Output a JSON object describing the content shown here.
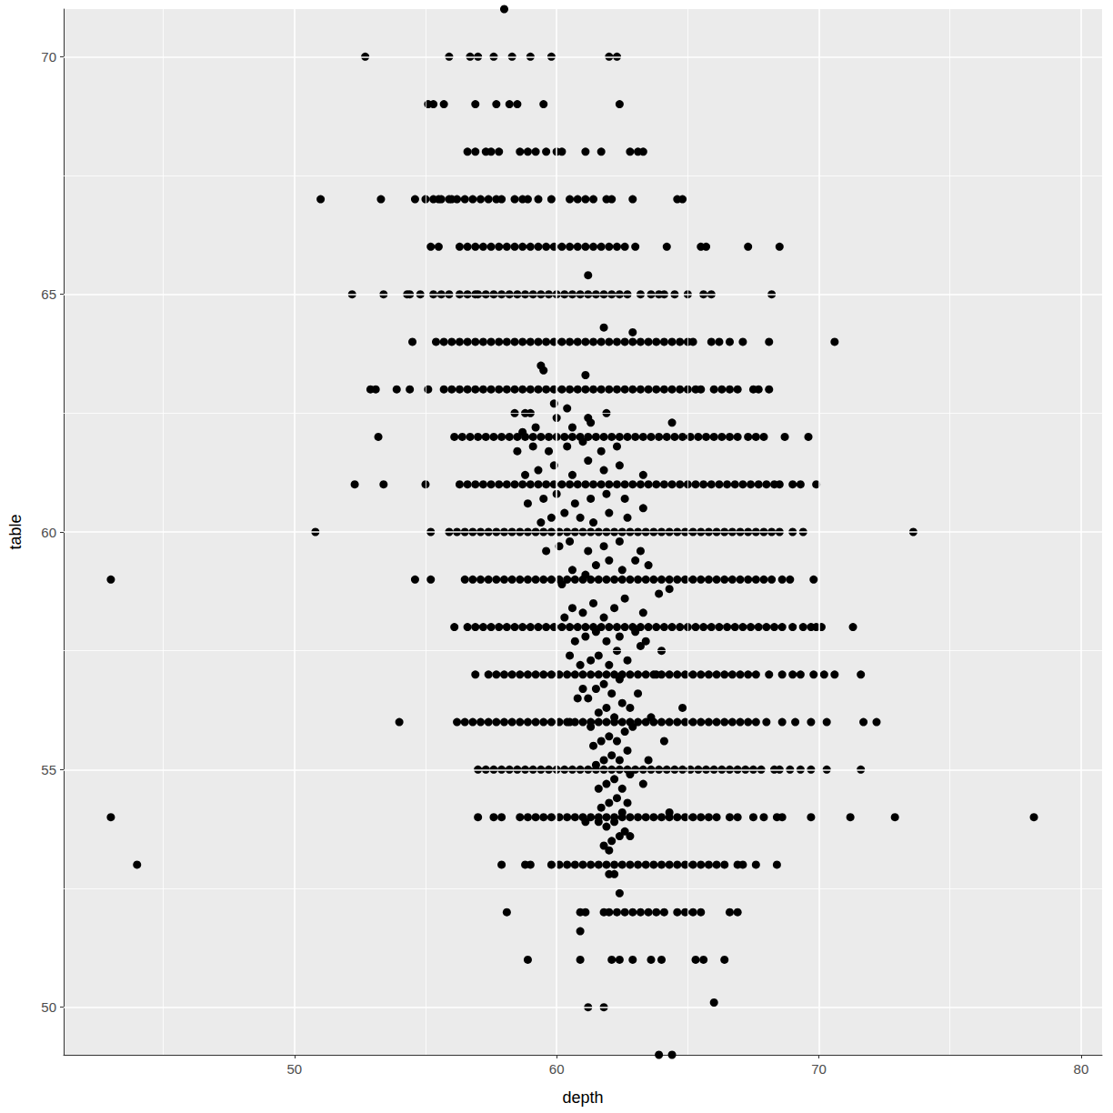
{
  "chart_data": {
    "type": "scatter",
    "xlabel": "depth",
    "ylabel": "table",
    "color": "#000000",
    "marker": "circle",
    "grid": true,
    "xlim": [
      41.2,
      80.8
    ],
    "ylim": [
      49,
      71
    ],
    "xticks": [
      50,
      60,
      70,
      80
    ],
    "yticks": [
      50,
      55,
      60,
      65,
      70
    ],
    "x": [
      58.0,
      52.7,
      55.9,
      56.7,
      57.0,
      57.6,
      58.3,
      59.0,
      59.8,
      62.0,
      62.3,
      55.1,
      55.3,
      55.7,
      56.9,
      57.7,
      58.2,
      58.5,
      59.5,
      62.4,
      56.6,
      56.9,
      57.3,
      57.8,
      58.6,
      58.9,
      59.2,
      59.6,
      60.0,
      60.2,
      61.1,
      61.7,
      62.8,
      63.1,
      63.3,
      57.5,
      51.0,
      53.3,
      54.6,
      64.6,
      64.8,
      62.9,
      59.8,
      58.9,
      59.3,
      61.9,
      55.0,
      55.3,
      55.6,
      55.9,
      56.2,
      56.5,
      56.8,
      57.1,
      57.4,
      57.7,
      58.4,
      58.7,
      60.5,
      60.8,
      61.1,
      61.4,
      62.1,
      57.9,
      56.0,
      55.5,
      55.2,
      55.5,
      56.3,
      63.0,
      64.2,
      65.5,
      65.7,
      67.3,
      68.5,
      56.6,
      56.9,
      57.2,
      57.5,
      57.8,
      58.1,
      58.4,
      58.7,
      59.0,
      59.3,
      59.6,
      59.9,
      60.2,
      60.5,
      60.8,
      61.1,
      61.4,
      61.7,
      62.0,
      62.3,
      62.6,
      61.2,
      52.2,
      53.4,
      54.3,
      54.8,
      55.3,
      55.6,
      55.9,
      56.3,
      56.6,
      63.2,
      63.6,
      63.9,
      64.1,
      64.5,
      65.0,
      65.6,
      65.9,
      68.2,
      57.0,
      57.3,
      57.6,
      57.9,
      58.2,
      58.5,
      58.8,
      59.1,
      59.4,
      59.7,
      60.0,
      60.3,
      60.6,
      60.9,
      61.2,
      61.5,
      61.8,
      62.1,
      62.4,
      62.7,
      54.4,
      56.9,
      61.8,
      62.9,
      54.5,
      65.9,
      66.2,
      66.6,
      67.1,
      68.1,
      70.6,
      55.4,
      55.7,
      56.0,
      56.3,
      56.6,
      56.9,
      57.2,
      57.5,
      57.8,
      58.1,
      58.4,
      58.7,
      59.0,
      59.3,
      59.6,
      59.9,
      60.2,
      60.5,
      60.8,
      61.1,
      61.4,
      61.7,
      62.0,
      62.3,
      62.6,
      62.9,
      63.2,
      63.5,
      63.8,
      64.1,
      64.4,
      64.7,
      65.0,
      65.2,
      59.4,
      59.5,
      61.1,
      52.9,
      53.1,
      53.9,
      54.4,
      55.1,
      66.0,
      66.3,
      66.6,
      66.9,
      67.5,
      67.7,
      68.1,
      55.7,
      56.0,
      56.3,
      56.6,
      56.9,
      57.2,
      57.5,
      57.8,
      58.1,
      58.4,
      58.7,
      59.0,
      59.3,
      59.6,
      59.9,
      60.2,
      60.5,
      60.8,
      61.1,
      61.4,
      61.7,
      62.0,
      62.3,
      62.6,
      62.9,
      63.2,
      63.5,
      63.8,
      64.1,
      64.4,
      64.7,
      65.0,
      65.3,
      65.5,
      59.9,
      60.4,
      58.4,
      58.8,
      59.0,
      61.2,
      64.4,
      53.2,
      67.6,
      67.9,
      68.7,
      69.6,
      56.1,
      56.4,
      56.7,
      57.0,
      57.3,
      57.6,
      57.9,
      58.2,
      58.5,
      58.8,
      59.1,
      59.4,
      59.7,
      60.0,
      60.3,
      60.6,
      60.9,
      61.2,
      61.5,
      61.8,
      62.1,
      62.4,
      62.7,
      63.0,
      63.3,
      63.6,
      63.9,
      64.2,
      64.5,
      64.8,
      65.1,
      65.4,
      65.7,
      66.0,
      66.3,
      66.6,
      66.9,
      67.3,
      52.3,
      53.4,
      55.0,
      69.0,
      69.3,
      69.9,
      56.3,
      56.6,
      56.9,
      57.2,
      57.5,
      57.8,
      58.1,
      58.4,
      58.7,
      59.0,
      59.3,
      59.6,
      59.9,
      60.2,
      60.5,
      60.8,
      61.1,
      61.4,
      61.7,
      62.0,
      62.3,
      62.6,
      62.9,
      63.2,
      63.5,
      63.8,
      64.1,
      64.4,
      64.7,
      65.0,
      65.3,
      65.6,
      65.9,
      66.2,
      66.5,
      66.8,
      67.1,
      67.4,
      67.7,
      68.0,
      68.3,
      68.5,
      50.8,
      55.2,
      69.0,
      69.4,
      73.6,
      55.9,
      56.2,
      56.5,
      56.8,
      57.1,
      57.4,
      57.7,
      58.0,
      58.3,
      58.6,
      58.9,
      59.2,
      59.5,
      59.8,
      60.1,
      60.4,
      60.7,
      61.0,
      61.3,
      61.6,
      61.9,
      62.2,
      62.5,
      62.8,
      63.1,
      63.4,
      63.7,
      64.0,
      64.3,
      64.6,
      64.9,
      65.2,
      65.5,
      65.8,
      66.1,
      66.4,
      66.7,
      67.0,
      67.3,
      67.6,
      67.9,
      68.2,
      68.5,
      43.0,
      54.6,
      55.2,
      68.6,
      68.9,
      69.8,
      56.5,
      56.8,
      57.1,
      57.4,
      57.7,
      58.0,
      58.3,
      58.6,
      58.9,
      59.2,
      59.5,
      59.8,
      60.1,
      60.4,
      60.7,
      61.0,
      61.3,
      61.6,
      61.9,
      62.2,
      62.5,
      62.8,
      63.1,
      63.4,
      63.7,
      64.0,
      64.3,
      64.6,
      64.9,
      65.2,
      65.5,
      65.8,
      66.1,
      66.4,
      66.7,
      67.0,
      67.3,
      67.6,
      67.9,
      68.2,
      56.1,
      69.4,
      69.7,
      69.9,
      70.1,
      71.3,
      56.6,
      56.9,
      57.2,
      57.5,
      57.8,
      58.1,
      58.4,
      58.7,
      59.0,
      59.3,
      59.6,
      59.9,
      60.2,
      60.5,
      60.8,
      61.1,
      61.4,
      61.7,
      62.0,
      62.3,
      62.6,
      62.9,
      63.2,
      63.5,
      63.8,
      64.1,
      64.4,
      64.7,
      65.0,
      65.3,
      65.6,
      65.9,
      66.2,
      66.5,
      66.8,
      67.1,
      67.4,
      67.7,
      68.0,
      68.3,
      68.6,
      69.0,
      56.9,
      68.1,
      68.6,
      69.0,
      69.3,
      69.8,
      70.2,
      70.6,
      71.6,
      57.4,
      57.7,
      58.0,
      58.3,
      58.6,
      58.9,
      59.2,
      59.5,
      59.8,
      60.1,
      60.4,
      60.7,
      61.0,
      61.3,
      61.6,
      61.9,
      62.2,
      62.5,
      62.8,
      63.1,
      63.4,
      63.7,
      64.0,
      64.3,
      64.6,
      64.9,
      65.2,
      65.5,
      65.8,
      66.1,
      66.4,
      66.7,
      67.0,
      67.3,
      67.6,
      54.0,
      68.6,
      69.1,
      69.7,
      70.3,
      71.7,
      72.2,
      56.2,
      56.5,
      56.8,
      57.1,
      57.4,
      57.7,
      58.0,
      58.3,
      58.6,
      58.9,
      59.2,
      59.5,
      59.8,
      60.1,
      60.4,
      60.7,
      61.0,
      61.3,
      61.6,
      61.9,
      62.2,
      62.5,
      62.8,
      63.1,
      63.4,
      63.7,
      64.0,
      64.3,
      64.6,
      64.9,
      65.2,
      65.5,
      65.8,
      66.1,
      66.4,
      66.7,
      67.0,
      67.3,
      67.6,
      68.0,
      68.3,
      68.5,
      68.9,
      69.3,
      69.7,
      70.3,
      71.6,
      57.0,
      57.3,
      57.6,
      57.9,
      58.2,
      58.5,
      58.8,
      59.1,
      59.4,
      59.7,
      60.0,
      60.3,
      60.6,
      60.9,
      61.2,
      61.5,
      61.8,
      62.1,
      62.4,
      62.7,
      63.0,
      63.3,
      63.6,
      63.9,
      64.2,
      64.5,
      64.8,
      65.1,
      65.4,
      65.7,
      66.0,
      66.3,
      66.6,
      66.9,
      67.2,
      67.5,
      67.8,
      43.0,
      57.0,
      57.6,
      57.9,
      58.6,
      58.9,
      59.2,
      59.5,
      66.6,
      66.9,
      67.5,
      67.9,
      68.4,
      68.6,
      69.7,
      71.2,
      72.9,
      78.2,
      59.8,
      60.1,
      60.4,
      60.7,
      61.0,
      61.3,
      61.6,
      61.9,
      62.2,
      62.5,
      62.8,
      63.1,
      63.4,
      63.7,
      64.0,
      64.3,
      64.6,
      64.9,
      65.2,
      65.5,
      65.8,
      66.1,
      44.0,
      57.9,
      58.8,
      59.0,
      66.9,
      67.1,
      67.6,
      68.4,
      59.8,
      60.1,
      60.4,
      60.7,
      61.0,
      61.3,
      61.6,
      61.9,
      62.2,
      62.5,
      62.8,
      63.1,
      63.4,
      63.7,
      64.0,
      64.3,
      64.6,
      64.9,
      65.2,
      65.5,
      65.8,
      66.1,
      66.4,
      62.0,
      62.2,
      62.4,
      58.1,
      60.9,
      61.1,
      61.8,
      62.0,
      62.3,
      62.6,
      62.9,
      63.2,
      63.5,
      63.8,
      64.1,
      64.6,
      64.9,
      65.2,
      65.5,
      66.6,
      66.9,
      60.9,
      58.9,
      60.9,
      62.1,
      62.4,
      62.9,
      63.6,
      64.0,
      65.3,
      65.6,
      66.4,
      66.0,
      61.2,
      61.8,
      63.9,
      64.4,
      61.8,
      62.1,
      62.4,
      61.9,
      62.2,
      62.6,
      61.7,
      62.0,
      62.3,
      62.7,
      61.6,
      61.9,
      62.2,
      62.5,
      62.8,
      61.5,
      61.8,
      62.1,
      62.4,
      62.7,
      61.4,
      61.7,
      62.0,
      62.3,
      62.6,
      61.3,
      61.6,
      61.9,
      62.2,
      62.5,
      61.2,
      61.5,
      61.8,
      62.1,
      62.4,
      61.0,
      60.8,
      62.8,
      63.1,
      60.9,
      61.3,
      61.6,
      62.0,
      62.3,
      62.7,
      63.2,
      60.5,
      60.7,
      61.1,
      61.5,
      61.9,
      62.4,
      63.0,
      63.4,
      64.0,
      60.3,
      60.6,
      61.0,
      61.4,
      61.8,
      62.2,
      62.6,
      63.3,
      63.9,
      64.3,
      60.2,
      60.6,
      61.1,
      61.5,
      62.0,
      62.5,
      63.0,
      63.5,
      59.6,
      60.1,
      60.5,
      61.2,
      61.8,
      62.4,
      63.2,
      59.4,
      59.8,
      60.3,
      60.9,
      61.4,
      62.0,
      62.7,
      63.3,
      58.9,
      59.5,
      60.0,
      60.7,
      61.3,
      61.9,
      62.6,
      58.8,
      59.3,
      59.9,
      60.6,
      61.2,
      61.8,
      62.4,
      63.3,
      58.5,
      59.1,
      59.7,
      60.4,
      61.0,
      61.7,
      62.3,
      59.2,
      60.0,
      60.6,
      61.3,
      61.9,
      58.7,
      62.8,
      62.5,
      61.6,
      62.0,
      64.1,
      63.5,
      64.3,
      64.8,
      63.8,
      62.9,
      63.3,
      60.5,
      61.1,
      63.6
    ],
    "values": [
      71,
      70,
      70,
      70,
      70,
      70,
      70,
      70,
      70,
      70,
      70,
      69,
      69,
      69,
      69,
      69,
      69,
      69,
      69,
      69,
      68,
      68,
      68,
      68,
      68,
      68,
      68,
      68,
      68,
      68,
      68,
      68,
      68,
      68,
      68,
      68,
      67,
      67,
      67,
      67,
      67,
      67,
      67,
      67,
      67,
      67,
      67,
      67,
      67,
      67,
      67,
      67,
      67,
      67,
      67,
      67,
      67,
      67,
      67,
      67,
      67,
      67,
      67,
      67,
      67,
      67,
      66,
      66,
      66,
      66,
      66,
      66,
      66,
      66,
      66,
      66,
      66,
      66,
      66,
      66,
      66,
      66,
      66,
      66,
      66,
      66,
      66,
      66,
      66,
      66,
      66,
      66,
      66,
      66,
      66,
      66,
      65.4,
      65,
      65,
      65,
      65,
      65,
      65,
      65,
      65,
      65,
      65,
      65,
      65,
      65,
      65,
      65,
      65,
      65,
      65,
      65,
      65,
      65,
      65,
      65,
      65,
      65,
      65,
      65,
      65,
      65,
      65,
      65,
      65,
      65,
      65,
      65,
      65,
      65,
      65,
      65,
      65,
      64.3,
      64.2,
      64,
      64,
      64,
      64,
      64,
      64,
      64,
      64,
      64,
      64,
      64,
      64,
      64,
      64,
      64,
      64,
      64,
      64,
      64,
      64,
      64,
      64,
      64,
      64,
      64,
      64,
      64,
      64,
      64,
      64,
      64,
      64,
      64,
      64,
      64,
      64,
      64,
      64,
      64,
      64,
      64,
      63.5,
      63.4,
      63.3,
      63,
      63,
      63,
      63,
      63,
      63,
      63,
      63,
      63,
      63,
      63,
      63,
      63,
      63,
      63,
      63,
      63,
      63,
      63,
      63,
      63,
      63,
      63,
      63,
      63,
      63,
      63,
      63,
      63,
      63,
      63,
      63,
      63,
      63,
      63,
      63,
      63,
      63,
      63,
      63,
      63,
      63,
      63,
      63,
      63,
      63,
      62.7,
      62.6,
      62.5,
      62.5,
      62.5,
      62.4,
      62.3,
      62,
      62,
      62,
      62,
      62,
      62,
      62,
      62,
      62,
      62,
      62,
      62,
      62,
      62,
      62,
      62,
      62,
      62,
      62,
      62,
      62,
      62,
      62,
      62,
      62,
      62,
      62,
      62,
      62,
      62,
      62,
      62,
      62,
      62,
      62,
      62,
      62,
      62,
      62,
      62,
      62,
      62,
      62,
      61,
      61,
      61,
      61,
      61,
      61,
      61,
      61,
      61,
      61,
      61,
      61,
      61,
      61,
      61,
      61,
      61,
      61,
      61,
      61,
      61,
      61,
      61,
      61,
      61,
      61,
      61,
      61,
      61,
      61,
      61,
      61,
      61,
      61,
      61,
      61,
      61,
      61,
      61,
      61,
      61,
      61,
      61,
      61,
      61,
      61,
      61,
      61,
      60,
      60,
      60,
      60,
      60,
      60,
      60,
      60,
      60,
      60,
      60,
      60,
      60,
      60,
      60,
      60,
      60,
      60,
      60,
      60,
      60,
      60,
      60,
      60,
      60,
      60,
      60,
      60,
      60,
      60,
      60,
      60,
      60,
      60,
      60,
      60,
      60,
      60,
      60,
      60,
      60,
      60,
      60,
      60,
      60,
      60,
      60,
      60,
      59,
      59,
      59,
      59,
      59,
      59,
      59,
      59,
      59,
      59,
      59,
      59,
      59,
      59,
      59,
      59,
      59,
      59,
      59,
      59,
      59,
      59,
      59,
      59,
      59,
      59,
      59,
      59,
      59,
      59,
      59,
      59,
      59,
      59,
      59,
      59,
      59,
      59,
      59,
      59,
      59,
      59,
      59,
      59,
      59,
      59,
      58,
      58,
      58,
      58,
      58,
      58,
      58,
      58,
      58,
      58,
      58,
      58,
      58,
      58,
      58,
      58,
      58,
      58,
      58,
      58,
      58,
      58,
      58,
      58,
      58,
      58,
      58,
      58,
      58,
      58,
      58,
      58,
      58,
      58,
      58,
      58,
      58,
      58,
      58,
      58,
      58,
      58,
      58,
      58,
      58,
      58,
      58,
      58,
      57,
      57,
      57,
      57,
      57,
      57,
      57,
      57,
      57,
      57,
      57,
      57,
      57,
      57,
      57,
      57,
      57,
      57,
      57,
      57,
      57,
      57,
      57,
      57,
      57,
      57,
      57,
      57,
      57,
      57,
      57,
      57,
      57,
      57,
      57,
      57,
      57,
      57,
      57,
      57,
      57,
      57,
      57,
      57,
      56,
      56,
      56,
      56,
      56,
      56,
      56,
      56,
      56,
      56,
      56,
      56,
      56,
      56,
      56,
      56,
      56,
      56,
      56,
      56,
      56,
      56,
      56,
      56,
      56,
      56,
      56,
      56,
      56,
      56,
      56,
      56,
      56,
      56,
      56,
      56,
      56,
      56,
      56,
      56,
      56,
      56,
      56,
      56,
      56,
      56,
      56,
      55,
      55,
      55,
      55,
      55,
      55,
      55,
      55,
      55,
      55,
      55,
      55,
      55,
      55,
      55,
      55,
      55,
      55,
      55,
      55,
      55,
      55,
      55,
      55,
      55,
      55,
      55,
      55,
      55,
      55,
      55,
      55,
      55,
      55,
      55,
      55,
      55,
      55,
      55,
      55,
      55,
      55,
      55,
      55,
      54,
      54,
      54,
      54,
      54,
      54,
      54,
      54,
      54,
      54,
      54,
      54,
      54,
      54,
      54,
      54,
      54,
      54,
      54,
      54,
      54,
      54,
      54,
      54,
      54,
      54,
      54,
      54,
      54,
      54,
      54,
      54,
      54,
      54,
      54,
      54,
      54,
      54,
      54,
      54,
      53,
      53,
      53,
      53,
      53,
      53,
      53,
      53,
      53,
      53,
      53,
      53,
      53,
      53,
      53,
      53,
      53,
      53,
      53,
      53,
      53,
      53,
      53,
      53,
      53,
      53,
      53,
      53,
      53,
      53,
      53,
      52.8,
      52.8,
      52.4,
      52,
      52,
      52,
      52,
      52,
      52,
      52,
      52,
      52,
      52,
      52,
      52,
      52,
      52,
      52,
      52,
      52,
      52,
      51.6,
      51,
      51,
      51,
      51,
      51,
      51,
      51,
      51,
      51,
      51,
      50.1,
      50,
      50,
      49,
      49,
      53.4,
      53.5,
      53.6,
      53.8,
      53.9,
      53.7,
      54.2,
      54.3,
      54.4,
      54.3,
      54.6,
      54.7,
      54.8,
      54.6,
      54.9,
      55.1,
      55.2,
      55.3,
      55.2,
      55.4,
      55.5,
      55.6,
      55.7,
      55.6,
      55.8,
      55.9,
      56.2,
      56.3,
      56.1,
      56.4,
      56.5,
      56.7,
      56.8,
      56.6,
      56.9,
      56.7,
      56.5,
      56.3,
      56.6,
      57.2,
      57.3,
      57.4,
      57.2,
      57.5,
      57.3,
      57.6,
      57.4,
      57.7,
      57.8,
      57.9,
      57.7,
      57.8,
      57.9,
      57.7,
      57.5,
      58.2,
      58.4,
      58.3,
      58.5,
      58.2,
      58.4,
      58.6,
      58.3,
      58.7,
      58.8,
      58.9,
      59.2,
      59.1,
      59.3,
      59.4,
      59.2,
      59.4,
      59.3,
      59.6,
      59.7,
      59.8,
      59.6,
      59.7,
      59.8,
      59.6,
      60.2,
      60.3,
      60.4,
      60.3,
      60.2,
      60.4,
      60.3,
      60.5,
      60.6,
      60.7,
      60.8,
      60.6,
      60.7,
      60.8,
      60.7,
      61.2,
      61.3,
      61.4,
      61.2,
      61.5,
      61.3,
      61.4,
      61.2,
      61.7,
      61.8,
      61.7,
      61.8,
      61.9,
      61.7,
      61.8,
      62.2,
      62.4,
      62.2,
      62.3,
      62.5,
      62.1,
      53.6,
      54.1,
      53.9,
      53.3,
      55.6,
      55.2,
      54.1,
      56.3,
      57.0,
      55.9,
      54.7,
      56.0,
      53.9,
      56.1
    ]
  }
}
